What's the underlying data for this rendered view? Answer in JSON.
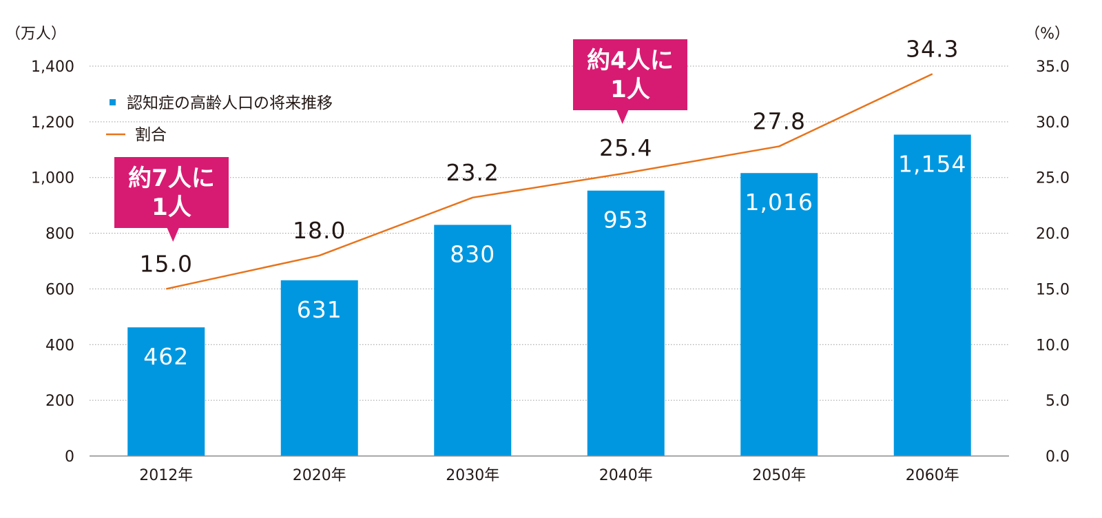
{
  "chart_data": {
    "type": "bar",
    "categories": [
      "2012年",
      "2020年",
      "2030年",
      "2040年",
      "2050年",
      "2060年"
    ],
    "series": [
      {
        "name": "認知症の高齢人口の将来推移",
        "type": "bar",
        "axis": "left",
        "values": [
          462,
          631,
          830,
          953,
          1016,
          1154
        ],
        "labels": [
          "462",
          "631",
          "830",
          "953",
          "1,016",
          "1,154"
        ],
        "color": "#0097e0"
      },
      {
        "name": "割合",
        "type": "line",
        "axis": "right",
        "values": [
          15.0,
          18.0,
          23.2,
          25.4,
          27.8,
          34.3
        ],
        "labels": [
          "15.0",
          "18.0",
          "23.2",
          "25.4",
          "27.8",
          "34.3"
        ],
        "color": "#e8731a"
      }
    ],
    "left_axis": {
      "unit": "（万人）",
      "ylim": [
        0,
        1400
      ],
      "ticks": [
        0,
        200,
        400,
        600,
        800,
        1000,
        1200,
        1400
      ],
      "tick_labels": [
        "0",
        "200",
        "400",
        "600",
        "800",
        "1,000",
        "1,200",
        "1,400"
      ]
    },
    "right_axis": {
      "unit": "（%）",
      "ylim": [
        0,
        35
      ],
      "ticks": [
        0,
        5,
        10,
        15,
        20,
        25,
        30,
        35
      ],
      "tick_labels": [
        "0.0",
        "5.0",
        "10.0",
        "15.0",
        "20.0",
        "25.0",
        "30.0",
        "35.0"
      ]
    },
    "grid": true,
    "legend_position": "top-left",
    "annotations": [
      {
        "lines": [
          "約7人に",
          "1人"
        ],
        "category_index": 0,
        "color": "#d81b72"
      },
      {
        "lines": [
          "約4人に",
          "1人"
        ],
        "category_index": 3,
        "color": "#d81b72"
      }
    ]
  }
}
